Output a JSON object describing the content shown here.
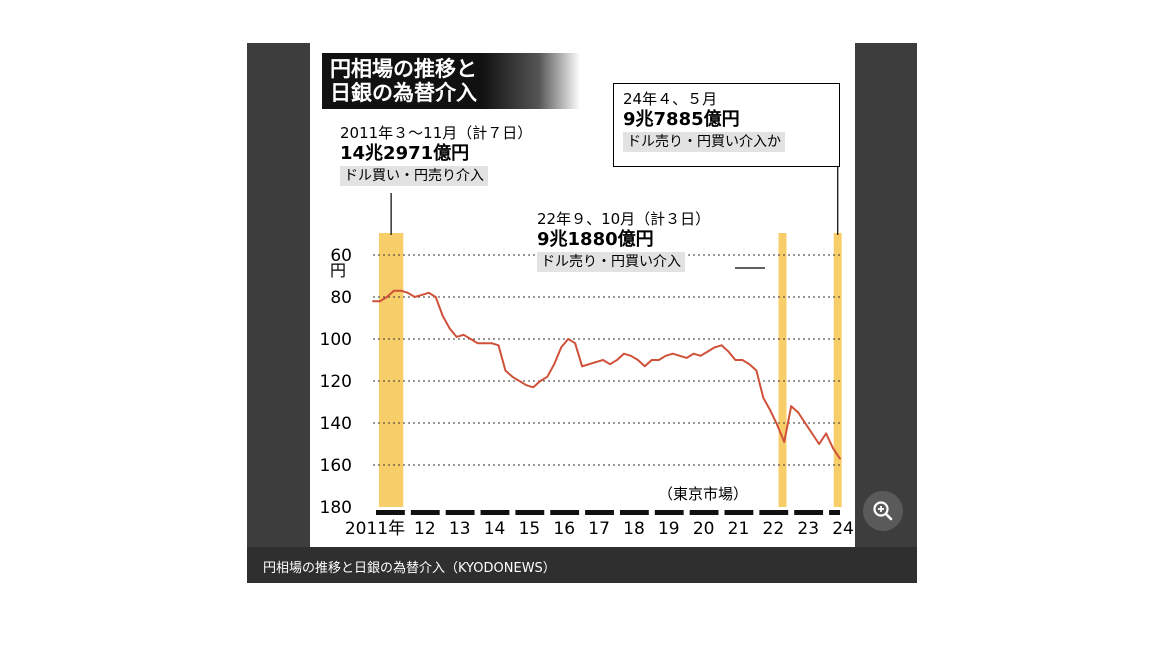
{
  "title": {
    "line1": "円相場の推移と",
    "line2": "日銀の為替介入"
  },
  "annotations": {
    "a2011": {
      "period": "2011年３～11月（計７日）",
      "amount": "14兆2971億円",
      "type": "ドル買い・円売り介入"
    },
    "a2022": {
      "period": "22年９、10月（計３日）",
      "amount": "9兆1880億円",
      "type": "ドル売り・円買い介入"
    },
    "a2024": {
      "period": "24年４、５月",
      "amount": "9兆7885億円",
      "type": "ドル売り・円買い介入か"
    }
  },
  "source_note": "（東京市場）",
  "caption": "円相場の推移と日銀の為替介入（KYODONEWS）",
  "icons": {
    "zoom": "zoom-in-icon"
  },
  "colors": {
    "line": "#d0513a",
    "band": "#f7c95a",
    "frame": "#3d3d3d"
  },
  "chart_data": {
    "type": "line",
    "y_unit": "円",
    "ylim": [
      60,
      180
    ],
    "y_inverted": true,
    "y_ticks": [
      60,
      80,
      100,
      120,
      140,
      160,
      180
    ],
    "x_ticks": [
      "2011年",
      "12",
      "13",
      "14",
      "15",
      "16",
      "17",
      "18",
      "19",
      "20",
      "21",
      "22",
      "23",
      "24"
    ],
    "x_tick_years": [
      2011,
      2012,
      2013,
      2014,
      2015,
      2016,
      2017,
      2018,
      2019,
      2020,
      2021,
      2022,
      2023,
      2024
    ],
    "grid": true,
    "intervention_periods": [
      {
        "start": 2011.17,
        "end": 2011.87
      },
      {
        "start": 2022.67,
        "end": 2022.83
      },
      {
        "start": 2024.25,
        "end": 2024.42
      }
    ],
    "series": [
      {
        "x": [
          2011.0,
          2011.2,
          2011.4,
          2011.6,
          2011.8,
          2012.0,
          2012.2,
          2012.4,
          2012.6,
          2012.8,
          2013.0,
          2013.2,
          2013.4,
          2013.6,
          2013.8,
          2014.0,
          2014.2,
          2014.4,
          2014.6,
          2014.8,
          2015.0,
          2015.2,
          2015.4,
          2015.6,
          2015.8,
          2016.0,
          2016.2,
          2016.4,
          2016.6,
          2016.8,
          2017.0,
          2017.2,
          2017.4,
          2017.6,
          2017.8,
          2018.0,
          2018.2,
          2018.4,
          2018.6,
          2018.8,
          2019.0,
          2019.2,
          2019.4,
          2019.6,
          2019.8,
          2020.0,
          2020.2,
          2020.4,
          2020.6,
          2020.8,
          2021.0,
          2021.2,
          2021.4,
          2021.6,
          2021.8,
          2022.0,
          2022.2,
          2022.4,
          2022.6,
          2022.8,
          2023.0,
          2023.2,
          2023.4,
          2023.6,
          2023.8,
          2024.0,
          2024.2,
          2024.4
        ],
        "y": [
          82,
          82,
          80,
          77,
          77,
          78,
          80,
          79,
          78,
          80,
          89,
          95,
          99,
          98,
          100,
          102,
          102,
          102,
          103,
          115,
          118,
          120,
          122,
          123,
          120,
          118,
          112,
          104,
          100,
          102,
          113,
          112,
          111,
          110,
          112,
          110,
          107,
          108,
          110,
          113,
          110,
          110,
          108,
          107,
          108,
          109,
          107,
          108,
          106,
          104,
          103,
          106,
          110,
          110,
          112,
          115,
          128,
          134,
          141,
          149,
          132,
          135,
          140,
          145,
          150,
          145,
          152,
          157
        ]
      }
    ]
  }
}
